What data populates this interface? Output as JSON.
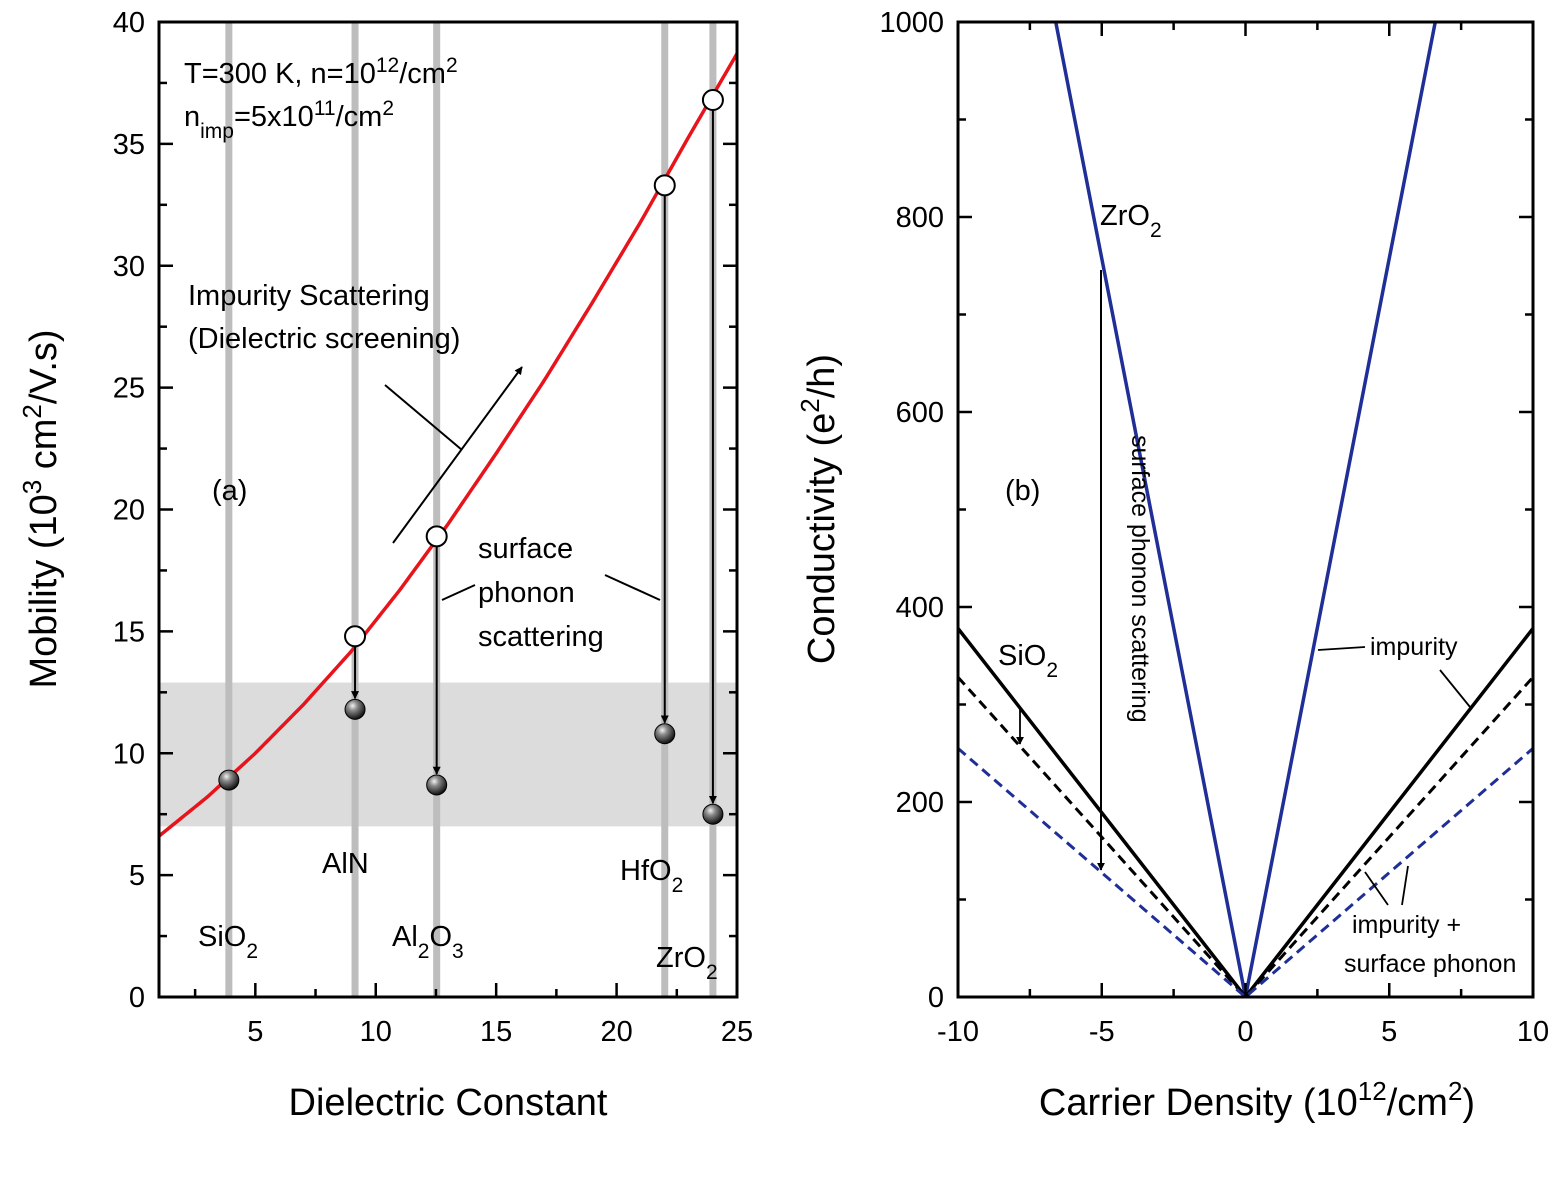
{
  "chart_data": [
    {
      "type": "scatter",
      "panel_label": "(a)",
      "xlabel": "Dielectric Constant",
      "ylabel": "Mobility (10³ cm²/V.s)",
      "ylabel_parts": {
        "pre": "Mobility (10",
        "sup1": "3",
        "mid": " cm",
        "sup2": "2",
        "post": "/V.s)"
      },
      "xlim": [
        1,
        25
      ],
      "ylim": [
        0,
        40
      ],
      "xticks": [
        5,
        10,
        15,
        20,
        25
      ],
      "yticks": [
        0,
        5,
        10,
        15,
        20,
        25,
        30,
        35,
        40
      ],
      "conditions": {
        "line1": {
          "pre": "T=300 K, n=10",
          "sup": "12",
          "mid": "/cm",
          "sup2": "2"
        },
        "line2": {
          "pre": "n",
          "sub": "imp",
          "mid": "=5x10",
          "sup": "11",
          "post": "/cm",
          "sup2": "2"
        }
      },
      "band": {
        "ymin": 7.0,
        "ymax": 12.9,
        "color": "#dcdcdc"
      },
      "curve": {
        "name": "Impurity Scattering (Dielectric screening)",
        "color": "#e8141b",
        "x": [
          1,
          3,
          5,
          7,
          9,
          11,
          13,
          15,
          17,
          19,
          21,
          23,
          25
        ],
        "y": [
          6.6,
          8.2,
          10.0,
          12.0,
          14.2,
          16.7,
          19.4,
          22.3,
          25.3,
          28.5,
          31.8,
          35.3,
          38.7
        ]
      },
      "annotation_impurity": {
        "line1": "Impurity Scattering",
        "line2": "(Dielectric screening)"
      },
      "annotation_surface": {
        "line1": "surface",
        "line2": "phonon",
        "line3": "scattering"
      },
      "materials": [
        {
          "label": "SiO",
          "sub": "2",
          "sub2": "",
          "mid": "",
          "k": 3.9,
          "impurity_mobility": null,
          "total_mobility": 8.9
        },
        {
          "label": "AlN",
          "sub": "",
          "sub2": "",
          "mid": "",
          "k": 9.14,
          "impurity_mobility": 14.8,
          "total_mobility": 11.8
        },
        {
          "label": "Al",
          "sub": "2",
          "mid": "O",
          "sub2": "3",
          "k": 12.53,
          "impurity_mobility": 18.9,
          "total_mobility": 8.7
        },
        {
          "label": "HfO",
          "sub": "2",
          "sub2": "",
          "mid": "",
          "k": 22.0,
          "impurity_mobility": 33.3,
          "total_mobility": 10.8
        },
        {
          "label": "ZrO",
          "sub": "2",
          "sub2": "",
          "mid": "",
          "k": 24.0,
          "impurity_mobility": 36.8,
          "total_mobility": 7.5
        }
      ]
    },
    {
      "type": "line",
      "panel_label": "(b)",
      "xlabel": "Carrier Density (10¹²/cm²)",
      "xlabel_parts": {
        "pre": "Carrier Density (10",
        "sup": "12",
        "mid": "/cm",
        "sup2": "2",
        "post": ")"
      },
      "ylabel": "Conductivity (e²/h)",
      "ylabel_parts": {
        "pre": "Conductivity (e",
        "sup": "2",
        "post": "/h)"
      },
      "xlim": [
        -10,
        10
      ],
      "ylim": [
        0,
        1000
      ],
      "xticks": [
        -10,
        -5,
        0,
        5,
        10
      ],
      "yticks": [
        0,
        200,
        400,
        600,
        800,
        1000
      ],
      "series": [
        {
          "style": "solid-blue",
          "color": "#1f2f96",
          "x": [
            -6.6,
            0,
            6.6
          ],
          "y": [
            1000,
            0,
            1000
          ]
        },
        {
          "style": "solid-black",
          "color": "#000000",
          "x": [
            -10,
            0,
            10
          ],
          "y": [
            378,
            0,
            378
          ]
        },
        {
          "style": "dashed-black",
          "color": "#000000",
          "x": [
            -10,
            0,
            10
          ],
          "y": [
            328,
            0,
            328
          ]
        },
        {
          "style": "dashed-blue",
          "color": "#1f2f96",
          "x": [
            -10,
            0,
            10
          ],
          "y": [
            255,
            0,
            255
          ]
        }
      ],
      "labels": {
        "zro2": {
          "main": "ZrO",
          "sub": "2"
        },
        "sio2": {
          "main": "SiO",
          "sub": "2"
        },
        "surface": "surface phonon scattering",
        "impurity": "impurity",
        "impurity_plus1": "impurity +",
        "impurity_plus2": "surface phonon"
      }
    }
  ]
}
